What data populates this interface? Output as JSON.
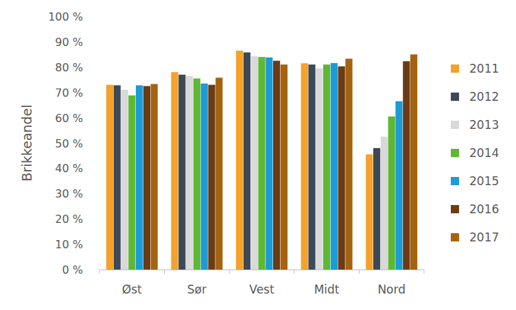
{
  "chart_data": {
    "type": "bar",
    "y_label": "Brikkeandel",
    "categories": [
      "Øst",
      "Sør",
      "Vest",
      "Midt",
      "Nord"
    ],
    "series": [
      {
        "name": "2011",
        "color": "#f5a12a",
        "values": [
          73,
          78,
          86.5,
          81.5,
          45.5
        ]
      },
      {
        "name": "2012",
        "color": "#3c4956",
        "values": [
          72.8,
          77,
          85.8,
          81,
          48
        ]
      },
      {
        "name": "2013",
        "color": "#d9d9d9",
        "values": [
          71,
          76.5,
          84.3,
          79.5,
          52.5
        ]
      },
      {
        "name": "2014",
        "color": "#5db933",
        "values": [
          68.8,
          75.5,
          84,
          81,
          60.5
        ]
      },
      {
        "name": "2015",
        "color": "#1b9bd7",
        "values": [
          72.8,
          73.5,
          83.8,
          81.6,
          66.5
        ]
      },
      {
        "name": "2016",
        "color": "#6b3b14",
        "values": [
          72.5,
          73,
          82.5,
          80.3,
          82.3
        ]
      },
      {
        "name": "2017",
        "color": "#a5620f",
        "values": [
          73.3,
          75.8,
          81,
          83.3,
          85
        ]
      }
    ],
    "ylim": [
      0,
      100
    ],
    "yticks": [
      {
        "value": 0,
        "label": "0 %"
      },
      {
        "value": 10,
        "label": "10 %"
      },
      {
        "value": 20,
        "label": "20 %"
      },
      {
        "value": 30,
        "label": "30 %"
      },
      {
        "value": 40,
        "label": "40 %"
      },
      {
        "value": 50,
        "label": "50 %"
      },
      {
        "value": 60,
        "label": "60 %"
      },
      {
        "value": 70,
        "label": "70 %"
      },
      {
        "value": 80,
        "label": "80 %"
      },
      {
        "value": 90,
        "label": "90 %"
      },
      {
        "value": 100,
        "label": "100 %"
      }
    ],
    "grid": false,
    "legend": "right"
  }
}
